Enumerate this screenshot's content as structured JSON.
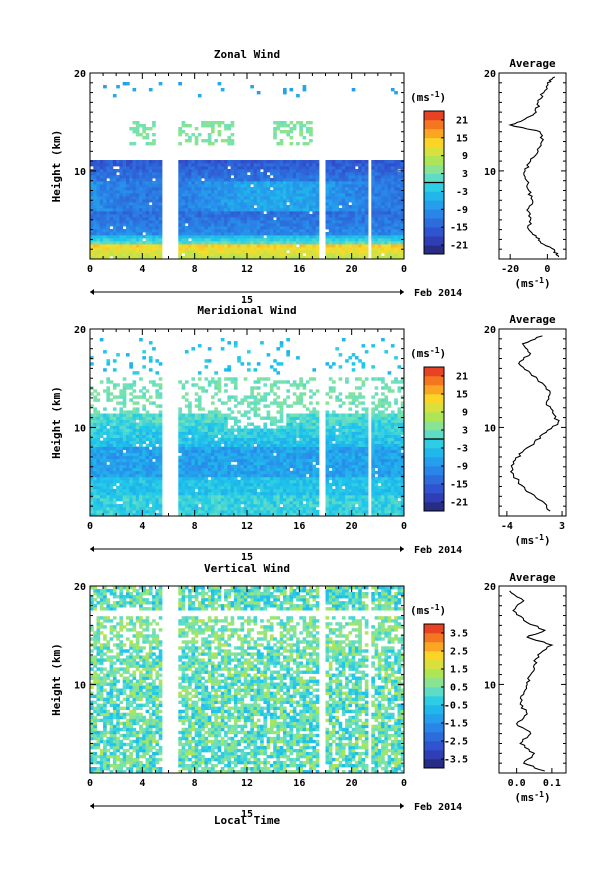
{
  "chart_data": [
    {
      "type": "heatmap",
      "title": "Zonal Wind",
      "ylabel": "Height (km)",
      "xlim": [
        0,
        24
      ],
      "ylim": [
        1,
        20
      ],
      "x_ticks": [
        "0",
        "4",
        "8",
        "12",
        "16",
        "20",
        "0"
      ],
      "y_ticks": [
        "10",
        "20"
      ],
      "date_day": "15",
      "date_label": "Feb 2014",
      "colorbar": {
        "unit_label": "(ms",
        "unit_exp": "-1",
        "unit_close": ")",
        "ticks": [
          "21",
          "15",
          "9",
          "3",
          "-3",
          "-9",
          "-15",
          "-21"
        ],
        "range": [
          -24,
          24
        ]
      },
      "data_gaps_hours": [
        [
          5.5,
          6.7
        ],
        [
          17.5,
          17.9
        ],
        [
          21.2,
          21.6
        ]
      ],
      "profile_description": "Wind (m/s) field: strong westward (-10 to -20) between 3.5 and 11 km, weak eastward near 1.5-2.5 km, sparse echoes above 12 km",
      "average": {
        "title": "Average",
        "xlabel": "(ms",
        "xlabel_exp": "-1",
        "xlabel_close": ")",
        "x_ticks": [
          "-20",
          "0"
        ],
        "y_ticks": [
          "10",
          "20"
        ],
        "xlim": [
          -26,
          10
        ],
        "ylim": [
          1,
          20
        ],
        "profile": [
          {
            "h": 1.2,
            "v": 6
          },
          {
            "h": 1.8,
            "v": 4
          },
          {
            "h": 2.5,
            "v": -2
          },
          {
            "h": 3.2,
            "v": -6
          },
          {
            "h": 4.0,
            "v": -10
          },
          {
            "h": 5.0,
            "v": -9
          },
          {
            "h": 6.0,
            "v": -11
          },
          {
            "h": 7.0,
            "v": -8
          },
          {
            "h": 8.0,
            "v": -10
          },
          {
            "h": 9.0,
            "v": -11
          },
          {
            "h": 10.0,
            "v": -12
          },
          {
            "h": 11.0,
            "v": -9
          },
          {
            "h": 12.0,
            "v": -5
          },
          {
            "h": 13.0,
            "v": -3
          },
          {
            "h": 14.0,
            "v": -4
          },
          {
            "h": 14.7,
            "v": -20
          },
          {
            "h": 15.3,
            "v": -12
          },
          {
            "h": 16.0,
            "v": -6
          },
          {
            "h": 17.0,
            "v": -5
          },
          {
            "h": 18.0,
            "v": -2
          },
          {
            "h": 19.0,
            "v": 0
          },
          {
            "h": 19.6,
            "v": 4
          }
        ]
      }
    },
    {
      "type": "heatmap",
      "title": "Meridional Wind",
      "ylabel": "Height (km)",
      "xlim": [
        0,
        24
      ],
      "ylim": [
        1,
        20
      ],
      "x_ticks": [
        "0",
        "4",
        "8",
        "12",
        "16",
        "20",
        "0"
      ],
      "y_ticks": [
        "10",
        "20"
      ],
      "date_day": "15",
      "date_label": "Feb 2014",
      "colorbar": {
        "unit_label": "(ms",
        "unit_exp": "-1",
        "unit_close": ")",
        "ticks": [
          "21",
          "15",
          "9",
          "3",
          "-3",
          "-9",
          "-15",
          "-21"
        ],
        "range": [
          -24,
          24
        ]
      },
      "data_gaps_hours": [
        [
          5.5,
          6.7
        ],
        [
          17.5,
          17.9
        ],
        [
          21.2,
          21.6
        ]
      ],
      "average": {
        "title": "Average",
        "xlabel": "(ms",
        "xlabel_exp": "-1",
        "xlabel_close": ")",
        "x_ticks": [
          "-4",
          "3"
        ],
        "y_ticks": [
          "10",
          "20"
        ],
        "xlim": [
          -5,
          3.5
        ],
        "ylim": [
          1,
          20
        ],
        "profile": [
          {
            "h": 1.5,
            "v": 1.5
          },
          {
            "h": 2.5,
            "v": 0.5
          },
          {
            "h": 3.5,
            "v": -1.5
          },
          {
            "h": 4.5,
            "v": -2.5
          },
          {
            "h": 5.5,
            "v": -3.5
          },
          {
            "h": 6.5,
            "v": -3.2
          },
          {
            "h": 7.5,
            "v": -2.0
          },
          {
            "h": 8.5,
            "v": -0.5
          },
          {
            "h": 9.5,
            "v": 1.0
          },
          {
            "h": 10.5,
            "v": 2.5
          },
          {
            "h": 11.5,
            "v": 1.8
          },
          {
            "h": 12.5,
            "v": 1.0
          },
          {
            "h": 13.5,
            "v": 1.5
          },
          {
            "h": 14.5,
            "v": 0.5
          },
          {
            "h": 15.5,
            "v": -1.0
          },
          {
            "h": 16.5,
            "v": -2.5
          },
          {
            "h": 17.5,
            "v": -1.0
          },
          {
            "h": 18.5,
            "v": -2.0
          },
          {
            "h": 19.3,
            "v": 0.5
          }
        ]
      }
    },
    {
      "type": "heatmap",
      "title": "Vertical Wind",
      "ylabel": "Height (km)",
      "xlabel": "Local Time",
      "xlim": [
        0,
        24
      ],
      "ylim": [
        1,
        20
      ],
      "x_ticks": [
        "0",
        "4",
        "8",
        "12",
        "16",
        "20",
        "0"
      ],
      "y_ticks": [
        "10",
        "20"
      ],
      "date_day": "15",
      "date_label": "Feb 2014",
      "colorbar": {
        "unit_label": "(ms",
        "unit_exp": "-1",
        "unit_close": ")",
        "ticks": [
          "3.5",
          "2.5",
          "1.5",
          "0.5",
          "-0.5",
          "-1.5",
          "-2.5",
          "-3.5"
        ],
        "range": [
          -4,
          4
        ]
      },
      "data_gaps_hours": [
        [
          5.5,
          6.7
        ],
        [
          17.5,
          17.9
        ],
        [
          21.2,
          21.6
        ]
      ],
      "average": {
        "title": "Average",
        "xlabel": "(ms",
        "xlabel_exp": "-1",
        "xlabel_close": ")",
        "x_ticks": [
          "0.0",
          "0.1"
        ],
        "y_ticks": [
          "10",
          "20"
        ],
        "xlim": [
          -0.05,
          0.14
        ],
        "ylim": [
          1,
          20
        ],
        "profile": [
          {
            "h": 1.2,
            "v": 0.08
          },
          {
            "h": 2.0,
            "v": 0.02
          },
          {
            "h": 3.0,
            "v": 0.05
          },
          {
            "h": 4.0,
            "v": 0.01
          },
          {
            "h": 5.0,
            "v": 0.04
          },
          {
            "h": 6.0,
            "v": 0.0
          },
          {
            "h": 7.0,
            "v": 0.03
          },
          {
            "h": 8.0,
            "v": 0.01
          },
          {
            "h": 9.0,
            "v": 0.02
          },
          {
            "h": 10.0,
            "v": 0.03
          },
          {
            "h": 11.0,
            "v": 0.04
          },
          {
            "h": 12.0,
            "v": 0.05
          },
          {
            "h": 13.0,
            "v": 0.06
          },
          {
            "h": 14.0,
            "v": 0.1
          },
          {
            "h": 14.8,
            "v": 0.03
          },
          {
            "h": 15.5,
            "v": 0.08
          },
          {
            "h": 16.5,
            "v": 0.02
          },
          {
            "h": 17.5,
            "v": -0.01
          },
          {
            "h": 18.5,
            "v": 0.02
          },
          {
            "h": 19.5,
            "v": -0.02
          }
        ]
      }
    }
  ]
}
